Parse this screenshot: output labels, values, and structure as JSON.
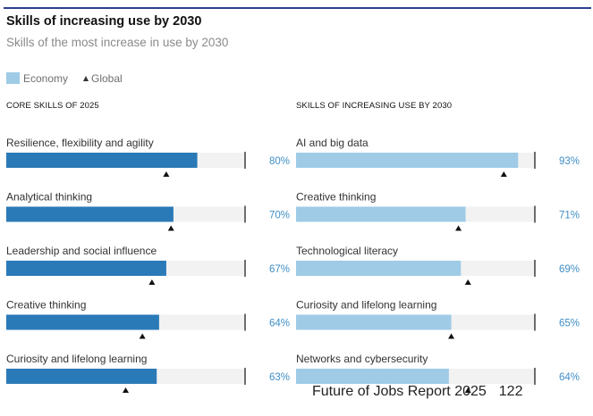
{
  "header": {
    "title": "Skills of increasing use by 2030",
    "subtitle": "Skills of the most increase in use by 2030"
  },
  "legend": {
    "economy_label": "Economy",
    "global_label": "Global"
  },
  "colors": {
    "left_bar": "#2a7ab8",
    "right_bar": "#9fcbe6",
    "track": "#f2f2f2",
    "value_text": "#3f8fc6",
    "marker": "#111111",
    "rule": "#2b3f8f"
  },
  "chart_data": [
    {
      "type": "bar",
      "orientation": "horizontal",
      "title": "CORE SKILLS OF 2025",
      "categories": [
        "Resilience, flexibility and agility",
        "Analytical thinking",
        "Leadership and social influence",
        "Creative thinking",
        "Curiosity and lifelong learning"
      ],
      "series": [
        {
          "name": "Economy",
          "values": [
            80,
            70,
            67,
            64,
            63
          ]
        },
        {
          "name": "Global",
          "values": [
            67,
            69,
            61,
            57,
            50
          ]
        }
      ],
      "value_labels": [
        "80%",
        "70%",
        "67%",
        "64%",
        "63%"
      ],
      "xlim": [
        0,
        100
      ],
      "reference_line": 100
    },
    {
      "type": "bar",
      "orientation": "horizontal",
      "title": "SKILLS OF INCREASING USE BY 2030",
      "categories": [
        "AI and big data",
        "Creative thinking",
        "Technological literacy",
        "Curiosity and lifelong learning",
        "Networks and cybersecurity"
      ],
      "series": [
        {
          "name": "Economy",
          "values": [
            93,
            71,
            69,
            65,
            64
          ]
        },
        {
          "name": "Global",
          "values": [
            87,
            68,
            72,
            65,
            72
          ]
        }
      ],
      "value_labels": [
        "93%",
        "71%",
        "69%",
        "65%",
        "64%"
      ],
      "xlim": [
        0,
        100
      ],
      "reference_line": 100
    }
  ],
  "footer": {
    "report": "Future of Jobs Report 2025",
    "page": "122"
  }
}
